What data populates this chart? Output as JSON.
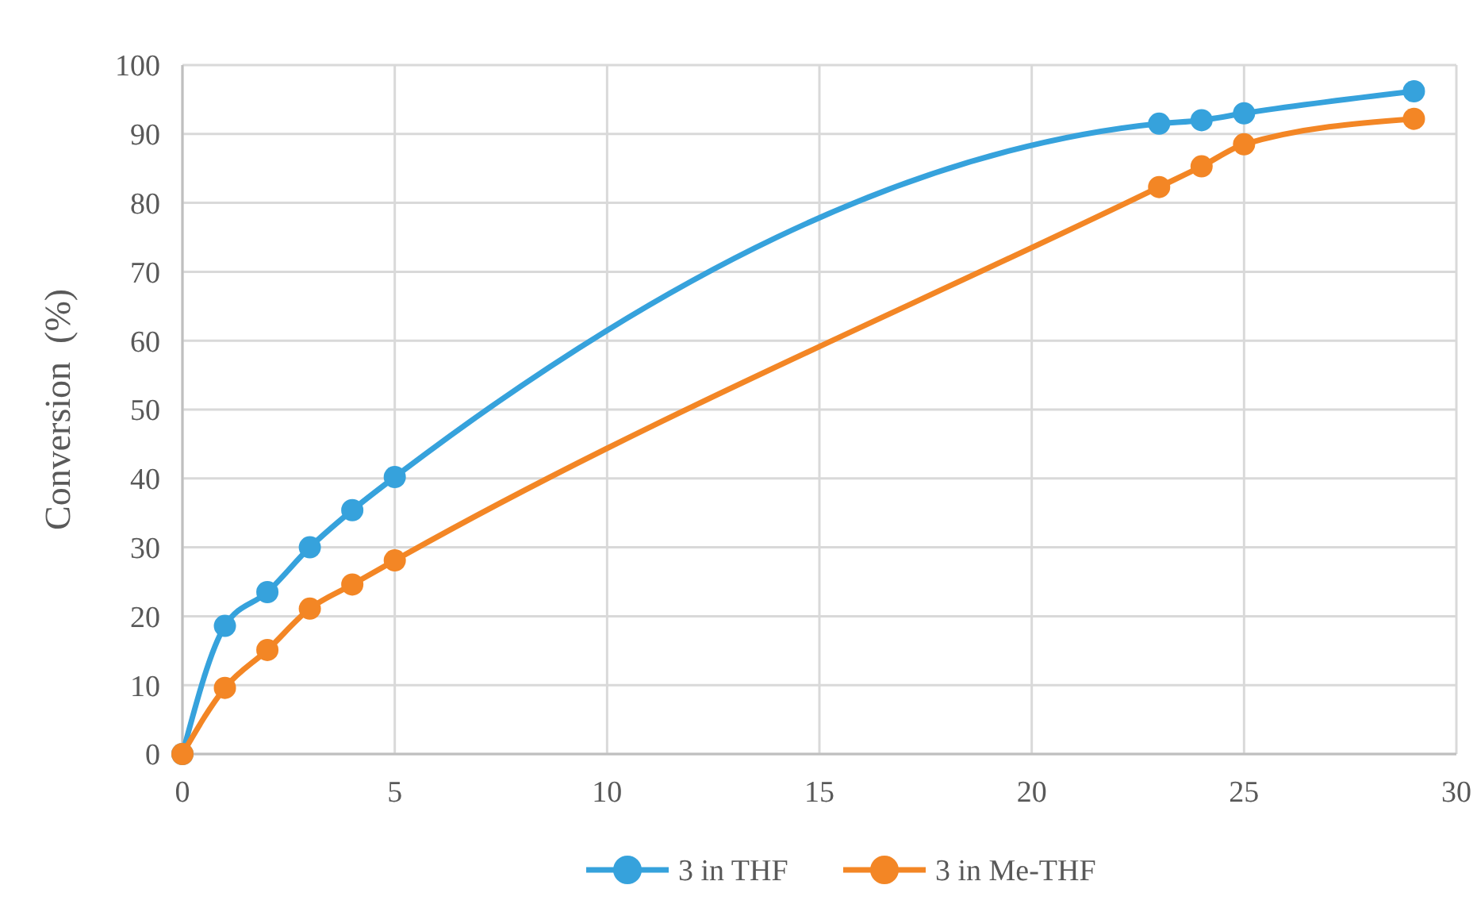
{
  "chart_data": {
    "type": "line",
    "ylabel": "Conversion  (%)",
    "x": [
      0,
      1,
      2,
      3,
      4,
      5,
      23,
      24,
      25,
      29
    ],
    "series": [
      {
        "name": "3 in THF",
        "color": "#36a2dc",
        "values": [
          0,
          18.6,
          23.5,
          30,
          35.4,
          40.2,
          91.5,
          92,
          93,
          96.2
        ]
      },
      {
        "name": "3 in Me-THF",
        "color": "#f38625",
        "values": [
          0,
          9.6,
          15.1,
          21.1,
          24.6,
          28.1,
          82.3,
          85.3,
          88.5,
          92.2
        ]
      }
    ],
    "xlim": [
      0,
      30
    ],
    "xticks": [
      0,
      5,
      10,
      15,
      20,
      25,
      30
    ],
    "ylim": [
      0,
      100
    ],
    "yticks": [
      0,
      10,
      20,
      30,
      40,
      50,
      60,
      70,
      80,
      90,
      100
    ],
    "grid": true,
    "legend": "bottom",
    "marker": "circle",
    "line_style": "solid"
  }
}
